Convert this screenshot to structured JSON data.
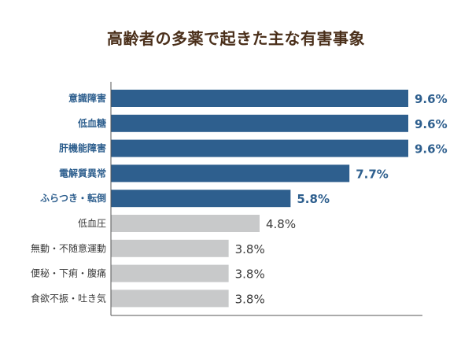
{
  "chart_data": {
    "type": "bar",
    "orientation": "horizontal",
    "title": "高齢者の多薬で起きた主な有害事象",
    "categories": [
      "意識障害",
      "低血糖",
      "肝機能障害",
      "電解質異常",
      "ふらつき・転倒",
      "低血圧",
      "無動・不随意運動",
      "便秘・下痢・腹痛",
      "食欲不振・吐き気"
    ],
    "values": [
      9.6,
      9.6,
      9.6,
      7.7,
      5.8,
      4.8,
      3.8,
      3.8,
      3.8
    ],
    "value_labels": [
      "9.6%",
      "9.6%",
      "9.6%",
      "7.7%",
      "5.8%",
      "4.8%",
      "3.8%",
      "3.8%",
      "3.8%"
    ],
    "highlighted": [
      true,
      true,
      true,
      true,
      true,
      false,
      false,
      false,
      false
    ],
    "xlim": [
      0,
      10
    ],
    "grid": false,
    "colors": {
      "highlight_bar": "#2e5f8e",
      "normal_bar": "#c8c9ca",
      "highlight_label": "#2e5f8e",
      "normal_label": "#3a3a3a",
      "title": "#4a2f1a",
      "axis": "#555555"
    }
  }
}
